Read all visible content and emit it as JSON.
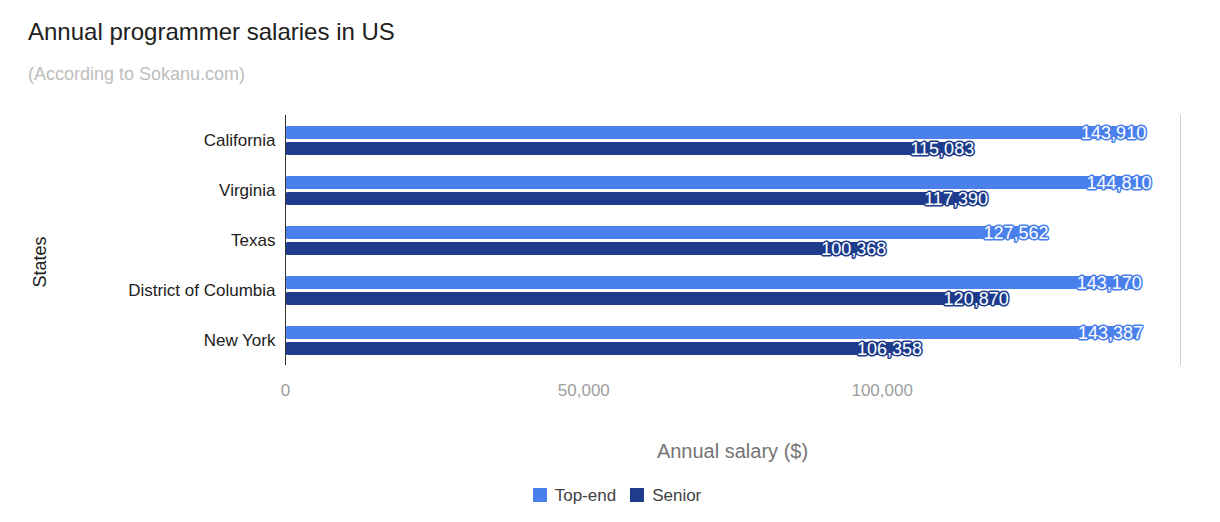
{
  "chart_data": {
    "type": "bar",
    "title": "Annual programmer salaries in US",
    "subtitle": "(According to Sokanu.com)",
    "orientation": "horizontal",
    "xlabel": "Annual salary ($)",
    "ylabel": "States",
    "categories": [
      "California",
      "Virginia",
      "Texas",
      "District of Columbia",
      "New York"
    ],
    "series": [
      {
        "name": "Top-end",
        "color": "#4a80ec",
        "values": [
          143910,
          144810,
          127562,
          143170,
          143387
        ],
        "value_labels": [
          "143,910",
          "144,810",
          "127,562",
          "143,170",
          "143,387"
        ]
      },
      {
        "name": "Senior",
        "color": "#1d3c8c",
        "values": [
          115083,
          117390,
          100368,
          120870,
          106358
        ],
        "value_labels": [
          "115,083",
          "117,390",
          "100,368",
          "120,870",
          "106,358"
        ]
      }
    ],
    "xlim": [
      0,
      150000
    ],
    "xticks": [
      0,
      {
        "value": 50000,
        "label": "50,000"
      },
      {
        "value": 100000,
        "label": "100,000"
      }
    ],
    "data_labels": true,
    "legend": "bottom",
    "grid": false
  }
}
